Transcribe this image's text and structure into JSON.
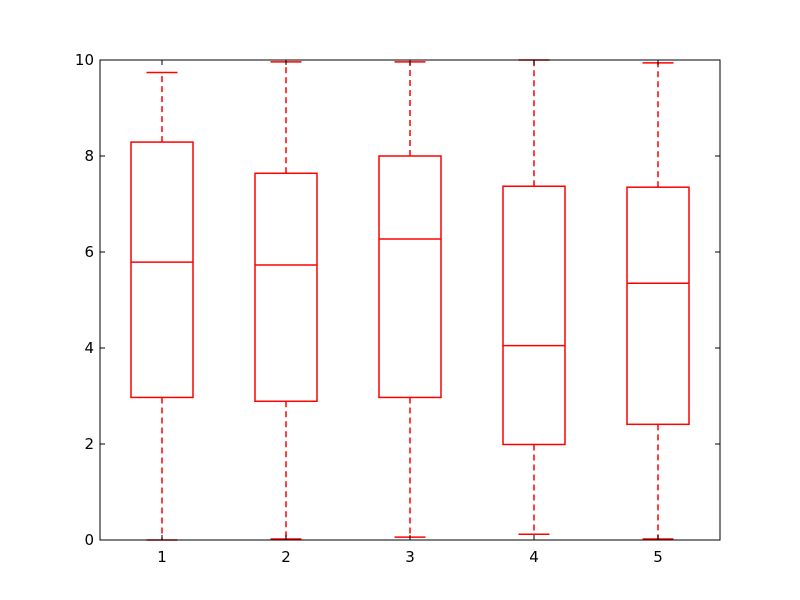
{
  "chart_data": {
    "type": "boxplot",
    "title": "",
    "xlabel": "",
    "ylabel": "",
    "ylim": [
      0,
      10
    ],
    "yticks": [
      0,
      2,
      4,
      6,
      8,
      10
    ],
    "ytick_labels": [
      "0",
      "2",
      "4",
      "6",
      "8",
      "10"
    ],
    "categories": [
      "1",
      "2",
      "3",
      "4",
      "5"
    ],
    "boxes": [
      {
        "label": "1",
        "whisker_low": 0.0,
        "q1": 2.97,
        "median": 5.79,
        "q3": 8.29,
        "whisker_high": 9.74
      },
      {
        "label": "2",
        "whisker_low": 0.02,
        "q1": 2.89,
        "median": 5.73,
        "q3": 7.64,
        "whisker_high": 9.96
      },
      {
        "label": "3",
        "whisker_low": 0.06,
        "q1": 2.97,
        "median": 6.27,
        "q3": 8.0,
        "whisker_high": 9.96
      },
      {
        "label": "4",
        "whisker_low": 0.12,
        "q1": 1.99,
        "median": 4.05,
        "q3": 7.37,
        "whisker_high": 10.0
      },
      {
        "label": "5",
        "whisker_low": 0.02,
        "q1": 2.41,
        "median": 5.35,
        "q3": 7.35,
        "whisker_high": 9.94
      }
    ],
    "grid": false,
    "legend": "none",
    "box_color": "#ff0000",
    "axes_color": "#000000"
  }
}
